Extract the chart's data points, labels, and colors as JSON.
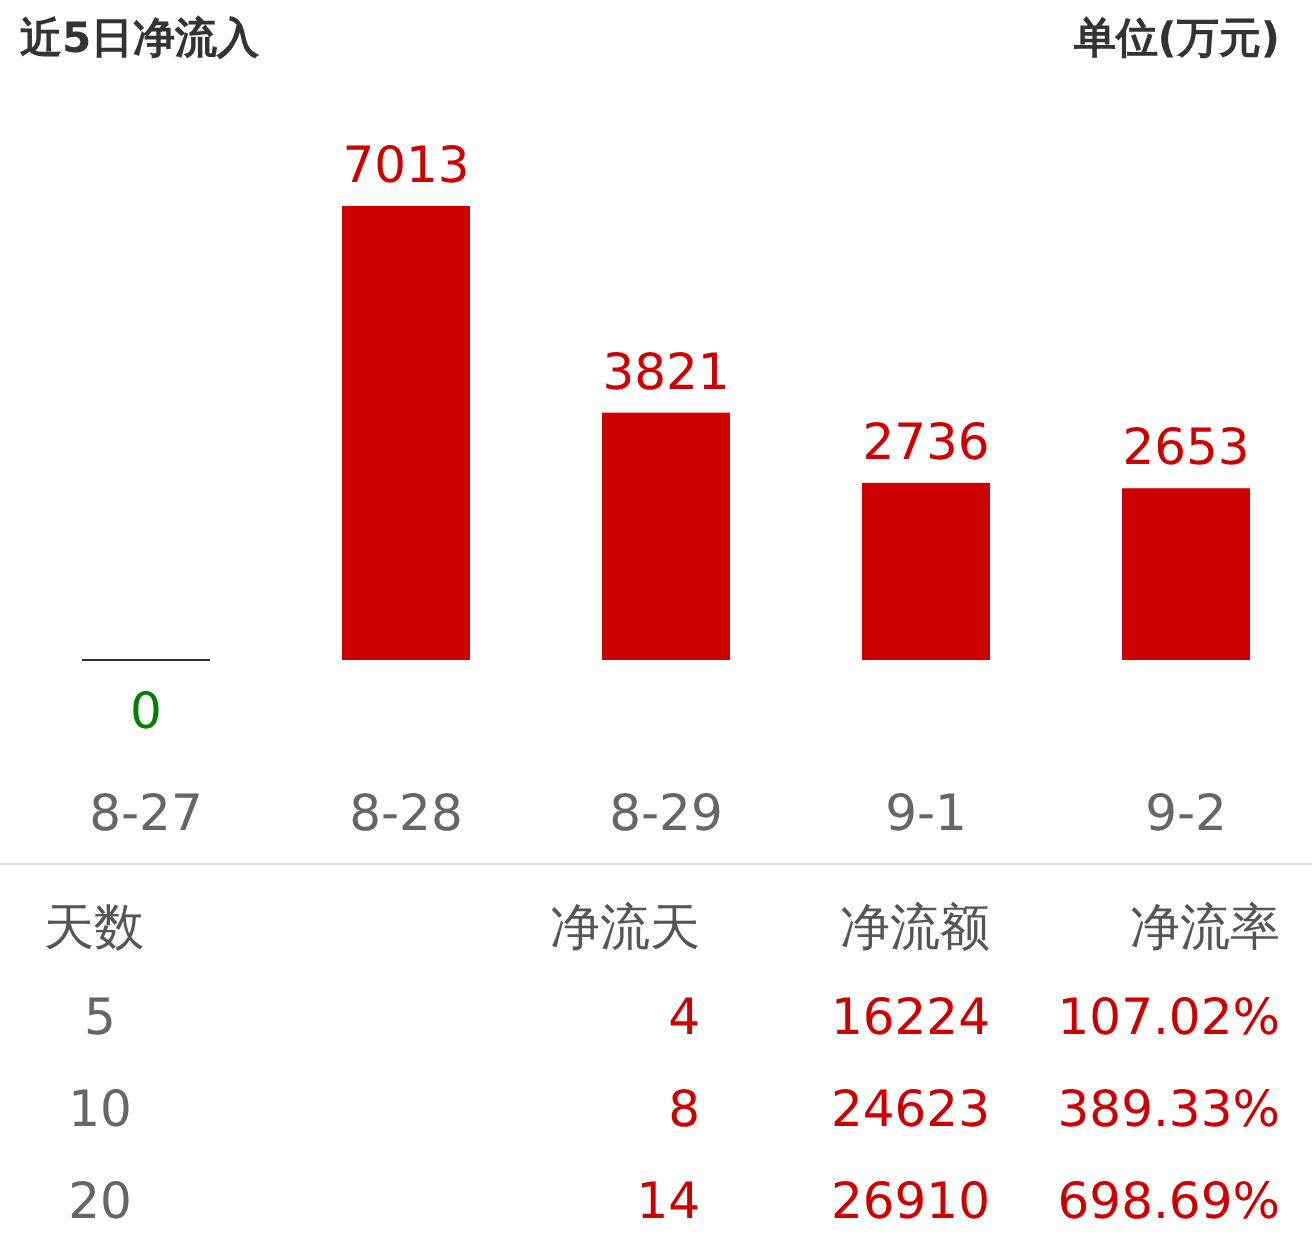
{
  "chart_data": {
    "type": "bar",
    "title": "近5日净流入",
    "ylabel": "单位(万元)",
    "categories": [
      "8-27",
      "8-28",
      "8-29",
      "9-1",
      "9-2"
    ],
    "values": [
      0,
      7013,
      3821,
      2736,
      2653
    ],
    "colors": [
      "#333333",
      "#cc0000",
      "#cc0000",
      "#cc0000",
      "#cc0000"
    ],
    "data_labels": true,
    "annotations": [
      "天数",
      "净流天",
      "净流额",
      "净流率",
      "5",
      "4",
      "16224",
      "107.02%",
      "10",
      "8",
      "24623",
      "389.33%",
      "20",
      "14",
      "26910",
      "698.69%"
    ]
  }
}
